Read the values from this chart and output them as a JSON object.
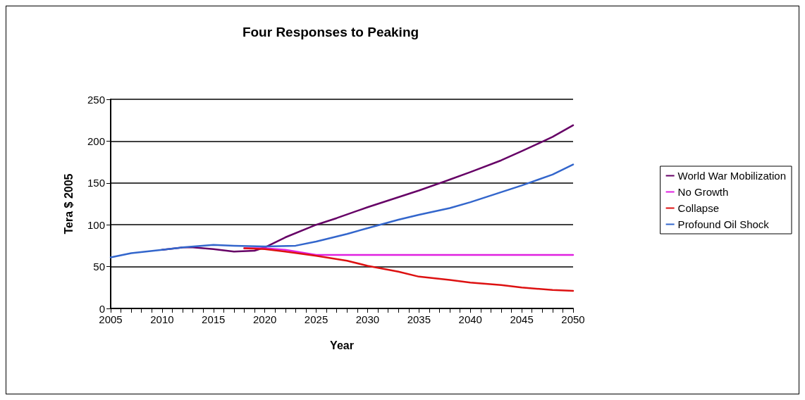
{
  "chart_data": {
    "type": "line",
    "title": "Four Responses to Peaking",
    "xlabel": "Year",
    "ylabel": "Tera $ 2005",
    "xlim": [
      2005,
      2050
    ],
    "ylim": [
      0,
      250
    ],
    "yticks": [
      0,
      50,
      100,
      150,
      200,
      250
    ],
    "xticks": [
      2005,
      {
        "value": 2006,
        "label": null
      },
      {
        "value": 2007,
        "label": null
      },
      {
        "value": 2008,
        "label": null
      },
      {
        "value": 2009,
        "label": null
      },
      2010,
      {
        "value": 2011,
        "label": null
      },
      {
        "value": 2012,
        "label": null
      },
      {
        "value": 2013,
        "label": null
      },
      {
        "value": 2014,
        "label": null
      },
      2015,
      {
        "value": 2016,
        "label": null
      },
      {
        "value": 2017,
        "label": null
      },
      {
        "value": 2018,
        "label": null
      },
      {
        "value": 2019,
        "label": null
      },
      2020,
      {
        "value": 2021,
        "label": null
      },
      {
        "value": 2022,
        "label": null
      },
      {
        "value": 2023,
        "label": null
      },
      {
        "value": 2024,
        "label": null
      },
      2025,
      {
        "value": 2026,
        "label": null
      },
      {
        "value": 2027,
        "label": null
      },
      {
        "value": 2028,
        "label": null
      },
      {
        "value": 2029,
        "label": null
      },
      2030,
      {
        "value": 2031,
        "label": null
      },
      {
        "value": 2032,
        "label": null
      },
      {
        "value": 2033,
        "label": null
      },
      {
        "value": 2034,
        "label": null
      },
      2035,
      {
        "value": 2036,
        "label": null
      },
      {
        "value": 2037,
        "label": null
      },
      {
        "value": 2038,
        "label": null
      },
      {
        "value": 2039,
        "label": null
      },
      2040,
      {
        "value": 2041,
        "label": null
      },
      {
        "value": 2042,
        "label": null
      },
      {
        "value": 2043,
        "label": null
      },
      {
        "value": 2044,
        "label": null
      },
      2045,
      {
        "value": 2046,
        "label": null
      },
      {
        "value": 2047,
        "label": null
      },
      {
        "value": 2048,
        "label": null
      },
      {
        "value": 2049,
        "label": null
      },
      2050
    ],
    "grid": "y",
    "legend": "right",
    "marker": "none",
    "line_style": "solid",
    "series": [
      {
        "name": "World War Mobilization",
        "color": "#660066",
        "x": [
          2010,
          2012,
          2013,
          2015,
          2017,
          2019,
          2020,
          2022,
          2025,
          2027,
          2030,
          2033,
          2035,
          2038,
          2040,
          2043,
          2045,
          2048,
          2050
        ],
        "values": [
          70,
          73,
          73,
          71,
          68,
          69,
          73,
          85,
          100,
          108,
          121,
          133,
          141,
          154,
          163,
          177,
          188,
          205,
          219
        ]
      },
      {
        "name": "No Growth",
        "color": "#e020e0",
        "x": [
          2018,
          2020,
          2022,
          2025,
          2030,
          2035,
          2040,
          2045,
          2050
        ],
        "values": [
          72,
          72,
          70,
          64,
          64,
          64,
          64,
          64,
          64
        ]
      },
      {
        "name": "Collapse",
        "color": "#dd1111",
        "x": [
          2018,
          2020,
          2022,
          2025,
          2028,
          2030,
          2033,
          2035,
          2038,
          2040,
          2043,
          2045,
          2048,
          2050
        ],
        "values": [
          72,
          71,
          68,
          63,
          57,
          51,
          44,
          38,
          34,
          31,
          28,
          25,
          22,
          21
        ]
      },
      {
        "name": "Profound Oil Shock",
        "color": "#3366cc",
        "x": [
          2005,
          2007,
          2010,
          2012,
          2015,
          2017,
          2020,
          2023,
          2025,
          2028,
          2030,
          2033,
          2035,
          2038,
          2040,
          2043,
          2045,
          2048,
          2050
        ],
        "values": [
          61,
          66,
          70,
          73,
          76,
          75,
          74,
          75,
          80,
          89,
          96,
          106,
          112,
          120,
          127,
          139,
          147,
          160,
          172
        ]
      }
    ]
  }
}
